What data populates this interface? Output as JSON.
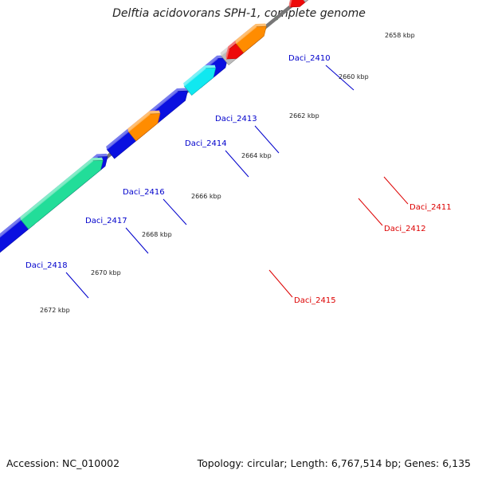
{
  "title": "Delftia acidovorans SPH-1, complete genome",
  "footer": {
    "accession": "Accession: NC_010002",
    "summary": "Topology: circular; Length: 6,767,514 bp; Genes: 6,135"
  },
  "ticks": [
    "2658 kbp",
    "2660 kbp",
    "2662 kbp",
    "2664 kbp",
    "2666 kbp",
    "2668 kbp",
    "2670 kbp",
    "2672 kbp"
  ],
  "gene_labels_forward": [
    "Daci_2410",
    "Daci_2413",
    "Daci_2414",
    "Daci_2416",
    "Daci_2417",
    "Daci_2418"
  ],
  "gene_labels_reverse": [
    "Daci_2411",
    "Daci_2412",
    "Daci_2415"
  ],
  "colors": {
    "backbone": "#777777",
    "forward_label": "#0000cc",
    "reverse_label": "#dd0000",
    "tick_dots": "#1a8a1a",
    "blue": "#0a10e0",
    "red": "#ee0a0a",
    "cyan": "#10e8f0",
    "gray": "#bbbbbb",
    "navy": "#45457e",
    "green": "#22dd99",
    "orange": "#ff8c00",
    "magenta": "#e0208a"
  }
}
